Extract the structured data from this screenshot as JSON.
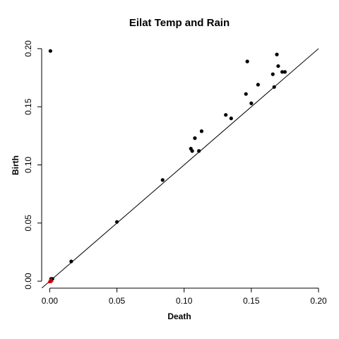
{
  "chart_data": {
    "type": "scatter",
    "title": "Eilat Temp and Rain",
    "xlabel": "Death",
    "ylabel": "Birth",
    "xlim": [
      -0.006,
      0.2
    ],
    "ylim": [
      -0.006,
      0.206
    ],
    "x_ticks": [
      0.0,
      0.05,
      0.1,
      0.15,
      0.2
    ],
    "y_ticks": [
      0.0,
      0.05,
      0.1,
      0.15,
      0.2
    ],
    "x_tick_labels": [
      "0.00",
      "0.05",
      "0.10",
      "0.15",
      "0.20"
    ],
    "y_tick_labels": [
      "0.00",
      "0.05",
      "0.10",
      "0.15",
      "0.20"
    ],
    "diagonal": {
      "slope": 1,
      "intercept": 0
    },
    "grid": false,
    "colors": {
      "points": "#000000",
      "highlight": "#cc0000",
      "line": "#000000"
    },
    "points": [
      {
        "x": 0.0005,
        "y": 0.198
      },
      {
        "x": 0.001,
        "y": 0.002
      },
      {
        "x": 0.002,
        "y": 0.002
      },
      {
        "x": 0.016,
        "y": 0.017
      },
      {
        "x": 0.05,
        "y": 0.051
      },
      {
        "x": 0.084,
        "y": 0.087
      },
      {
        "x": 0.105,
        "y": 0.114
      },
      {
        "x": 0.106,
        "y": 0.112
      },
      {
        "x": 0.108,
        "y": 0.123
      },
      {
        "x": 0.111,
        "y": 0.112
      },
      {
        "x": 0.113,
        "y": 0.129
      },
      {
        "x": 0.131,
        "y": 0.143
      },
      {
        "x": 0.135,
        "y": 0.14
      },
      {
        "x": 0.146,
        "y": 0.161
      },
      {
        "x": 0.147,
        "y": 0.189
      },
      {
        "x": 0.15,
        "y": 0.153
      },
      {
        "x": 0.155,
        "y": 0.169
      },
      {
        "x": 0.166,
        "y": 0.178
      },
      {
        "x": 0.167,
        "y": 0.167
      },
      {
        "x": 0.169,
        "y": 0.195
      },
      {
        "x": 0.17,
        "y": 0.185
      },
      {
        "x": 0.173,
        "y": 0.18
      },
      {
        "x": 0.175,
        "y": 0.18
      }
    ],
    "highlight_points": [
      {
        "x": 0.0,
        "y": 0.0
      },
      {
        "x": 0.001,
        "y": 0.001
      }
    ]
  }
}
